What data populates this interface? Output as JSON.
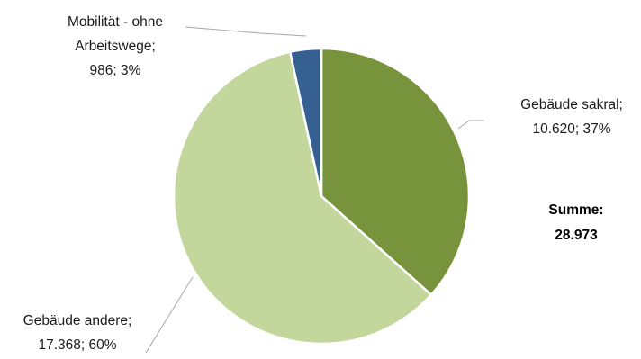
{
  "chart_data": {
    "type": "pie",
    "slices": [
      {
        "name": "Gebäude sakral",
        "value": 10620,
        "percent": 37,
        "color": "#77933c",
        "label_lines": [
          "Gebäude sakral;",
          "10.620; 37%"
        ]
      },
      {
        "name": "Gebäude andere",
        "value": 17368,
        "percent": 60,
        "color": "#c3d69b",
        "label_lines": [
          "Gebäude andere;",
          "17.368; 60%"
        ]
      },
      {
        "name": "Mobilität - ohne Arbeitswege",
        "value": 986,
        "percent": 3,
        "color": "#376092",
        "label_lines": [
          "Mobilität - ohne",
          "Arbeitswege;",
          "986; 3%"
        ]
      }
    ],
    "total_label": [
      "Summe:",
      "28.973"
    ],
    "start": "12 o'clock",
    "direction": "clockwise"
  }
}
